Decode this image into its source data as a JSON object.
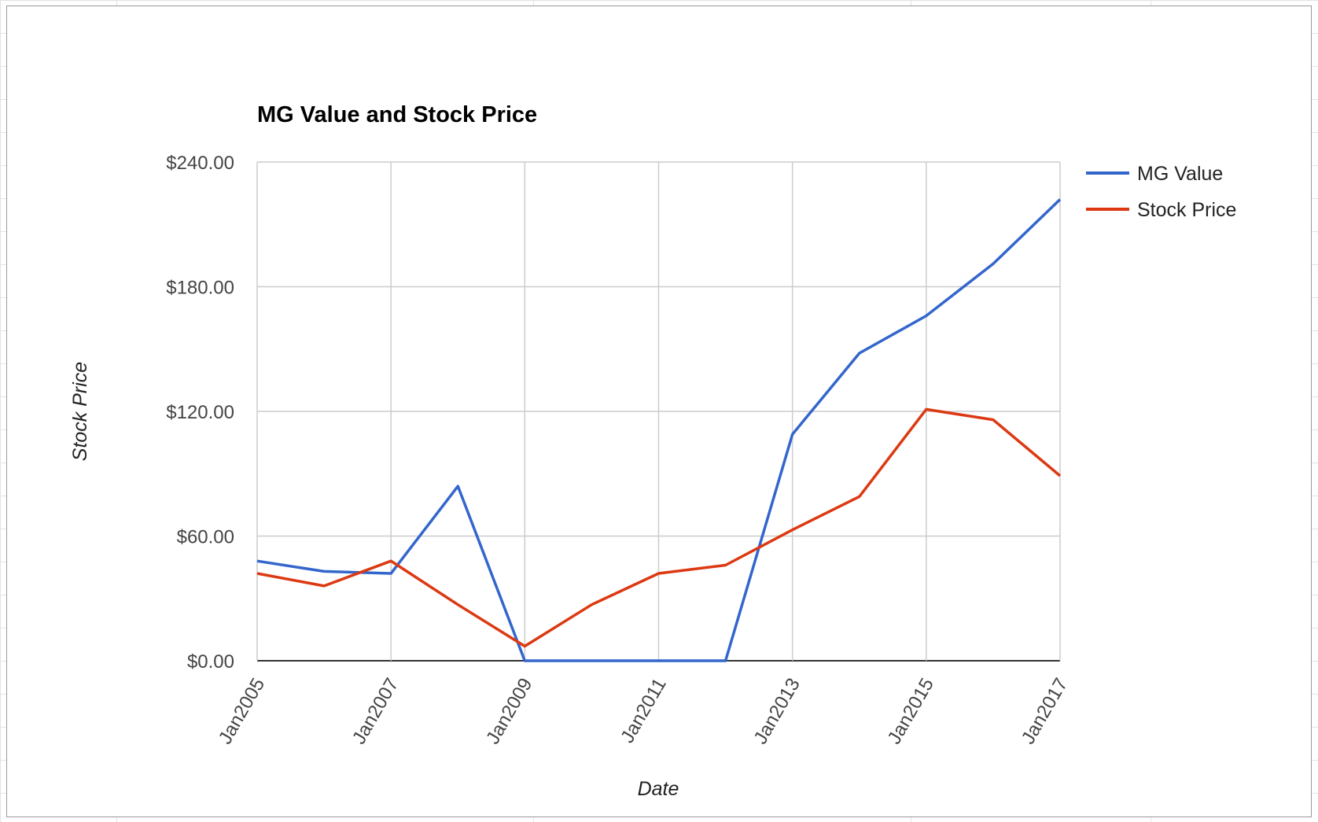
{
  "chart_data": {
    "type": "line",
    "title": "MG Value and Stock Price",
    "xlabel": "Date",
    "ylabel": "Stock Price",
    "x": [
      "Jan2005",
      "Jan2006",
      "Jan2007",
      "Jan2008",
      "Jan2009",
      "Jan2010",
      "Jan2011",
      "Jan2012",
      "Jan2013",
      "Jan2014",
      "Jan2015",
      "Jan2016",
      "Jan2017"
    ],
    "x_tick_labels": [
      "Jan2005",
      "Jan2007",
      "Jan2009",
      "Jan2011",
      "Jan2013",
      "Jan2015",
      "Jan2017"
    ],
    "y_tick_labels": [
      "$0.00",
      "$60.00",
      "$120.00",
      "$180.00",
      "$240.00"
    ],
    "y_ticks": [
      0,
      60,
      120,
      180,
      240
    ],
    "ylim": [
      0,
      240
    ],
    "grid": true,
    "legend_position": "right",
    "series": [
      {
        "name": "MG Value",
        "color": "#3366cc",
        "values": [
          48,
          43,
          42,
          84,
          0,
          0,
          0,
          0,
          109,
          148,
          166,
          191,
          222
        ]
      },
      {
        "name": "Stock Price",
        "color": "#dc3912",
        "values": [
          42,
          36,
          48,
          27,
          7,
          27,
          42,
          46,
          63,
          79,
          121,
          116,
          89
        ]
      }
    ]
  }
}
